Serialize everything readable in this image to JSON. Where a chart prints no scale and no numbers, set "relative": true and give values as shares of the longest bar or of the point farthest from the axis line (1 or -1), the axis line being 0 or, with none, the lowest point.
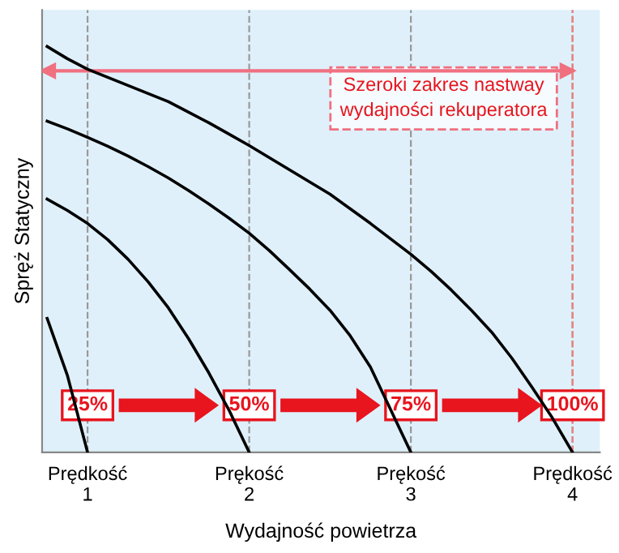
{
  "chart_data": {
    "type": "line",
    "relative": true,
    "xlabel": "Wydajność powietrza",
    "ylabel": "Spręż Statyczny",
    "categories": [
      null,
      null,
      "Prędkość\n1",
      null,
      null,
      null,
      null,
      null,
      null,
      null,
      "Prękość\n2",
      null,
      null,
      null,
      null,
      null,
      null,
      null,
      "Prękość\n3",
      null,
      null,
      null,
      null,
      null,
      null,
      null,
      "Prędkość\n4"
    ],
    "series": [
      {
        "color": "#000000",
        "values": [
          0.33,
          0.19,
          0,
          null,
          null,
          null,
          null,
          null,
          null,
          null,
          null,
          null,
          null,
          null,
          null,
          null,
          null,
          null,
          null,
          null,
          null,
          null,
          null,
          null,
          null,
          null,
          null
        ]
      },
      {
        "color": "#000000",
        "values": [
          0.624,
          0.596,
          0.564,
          0.524,
          0.476,
          0.42,
          0.356,
          0.28,
          0.196,
          0.104,
          0,
          null,
          null,
          null,
          null,
          null,
          null,
          null,
          null,
          null,
          null,
          null,
          null,
          null,
          null,
          null,
          null
        ]
      },
      {
        "color": "#000000",
        "values": [
          0.816,
          0.797,
          0.776,
          0.754,
          0.73,
          0.704,
          0.676,
          0.645,
          0.612,
          0.577,
          0.54,
          0.497,
          0.45,
          0.402,
          0.35,
          0.287,
          0.21,
          0.105,
          0,
          null,
          null,
          null,
          null,
          null,
          null,
          null,
          null
        ]
      },
      {
        "color": "#000000",
        "values": [
          1.0,
          0.97,
          0.944,
          0.924,
          0.904,
          0.884,
          0.864,
          0.838,
          0.812,
          0.784,
          0.756,
          0.726,
          0.696,
          0.666,
          0.636,
          0.6,
          0.564,
          0.526,
          0.488,
          0.446,
          0.4,
          0.35,
          0.296,
          0.232,
          0.16,
          0.085,
          0
        ]
      }
    ],
    "ref_lines": [
      {
        "axis": "x",
        "value": "Prędkość\n4",
        "color": "#f08080",
        "line_style": "dashed"
      },
      {
        "axis": "y",
        "value": 0.94,
        "label": "Szeroki zakres nastway\nwydajności rekuperatora",
        "color": "#f07080",
        "line_style": "solid"
      }
    ],
    "annotations": [
      "25%",
      "50%",
      "75%",
      "100%"
    ],
    "grid": "x",
    "legend": false,
    "marker": "none",
    "line_style": "solid"
  }
}
